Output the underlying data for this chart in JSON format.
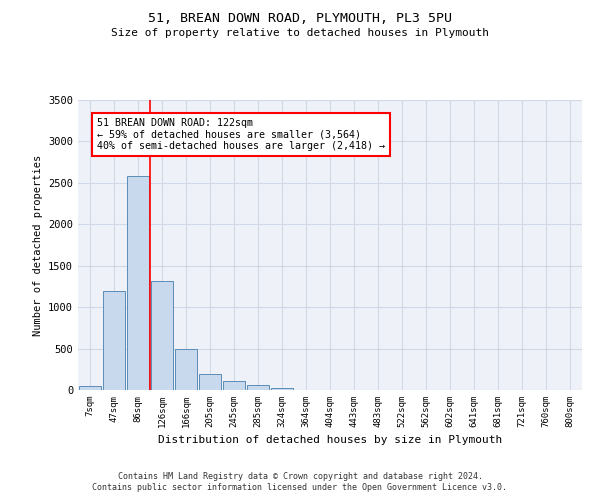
{
  "title1": "51, BREAN DOWN ROAD, PLYMOUTH, PL3 5PU",
  "title2": "Size of property relative to detached houses in Plymouth",
  "xlabel": "Distribution of detached houses by size in Plymouth",
  "ylabel": "Number of detached properties",
  "categories": [
    "7sqm",
    "47sqm",
    "86sqm",
    "126sqm",
    "166sqm",
    "205sqm",
    "245sqm",
    "285sqm",
    "324sqm",
    "364sqm",
    "404sqm",
    "443sqm",
    "483sqm",
    "522sqm",
    "562sqm",
    "602sqm",
    "641sqm",
    "681sqm",
    "721sqm",
    "760sqm",
    "800sqm"
  ],
  "bar_values": [
    50,
    1200,
    2580,
    1320,
    490,
    190,
    110,
    55,
    30,
    5,
    0,
    0,
    0,
    0,
    0,
    0,
    0,
    0,
    0,
    0,
    0
  ],
  "bar_color": "#c9d9ed",
  "bar_edge_color": "#5b8db8",
  "grid_color": "#d0d8e8",
  "background_color": "#eef2f8",
  "annotation_line1": "51 BREAN DOWN ROAD: 122sqm",
  "annotation_line2": "← 59% of detached houses are smaller (3,564)",
  "annotation_line3": "40% of semi-detached houses are larger (2,418) →",
  "vline_x_index": 2.5,
  "ylim": [
    0,
    3500
  ],
  "yticks": [
    0,
    500,
    1000,
    1500,
    2000,
    2500,
    3000,
    3500
  ],
  "footer1": "Contains HM Land Registry data © Crown copyright and database right 2024.",
  "footer2": "Contains public sector information licensed under the Open Government Licence v3.0."
}
